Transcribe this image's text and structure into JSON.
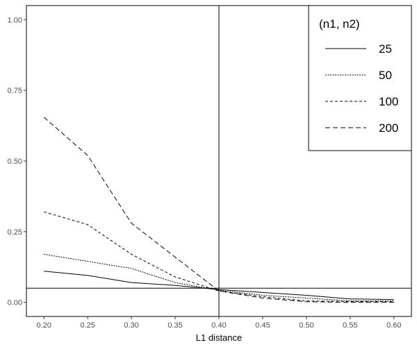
{
  "chart_data": {
    "type": "line",
    "xlabel": "L1 distance",
    "ylabel": "",
    "xlim": [
      0.18,
      0.62
    ],
    "ylim": [
      -0.05,
      1.05
    ],
    "x_ticks": [
      0.2,
      0.25,
      0.3,
      0.35,
      0.4,
      0.45,
      0.5,
      0.55,
      0.6
    ],
    "x_tick_labels": [
      "0.20",
      "0.25",
      "0.30",
      "0.35",
      "0.40",
      "0.45",
      "0.50",
      "0.55",
      "0.60"
    ],
    "y_ticks": [
      0,
      0.25,
      0.5,
      0.75,
      1.0
    ],
    "y_tick_labels": [
      "0.00",
      "0.25",
      "0.50",
      "0.75",
      "1.00"
    ],
    "reference_lines": {
      "vertical_x": 0.4,
      "horizontal_y": 0.05
    },
    "grid": false,
    "legend": {
      "title": "(n1, n2)",
      "position": "top-right"
    },
    "x": [
      0.2,
      0.25,
      0.3,
      0.35,
      0.4,
      0.45,
      0.5,
      0.55,
      0.6
    ],
    "series": [
      {
        "name": "25",
        "dash": "solid",
        "values": [
          0.11,
          0.095,
          0.07,
          0.06,
          0.045,
          0.035,
          0.025,
          0.012,
          0.01
        ]
      },
      {
        "name": "50",
        "dash": "dotted",
        "values": [
          0.17,
          0.145,
          0.12,
          0.07,
          0.043,
          0.025,
          0.015,
          0.005,
          0.005
        ]
      },
      {
        "name": "100",
        "dash": "shortdash",
        "values": [
          0.32,
          0.275,
          0.17,
          0.09,
          0.04,
          0.02,
          0.005,
          0.003,
          0.002
        ]
      },
      {
        "name": "200",
        "dash": "longdash",
        "values": [
          0.655,
          0.52,
          0.28,
          0.16,
          0.04,
          0.015,
          0.002,
          0.0,
          0.0
        ]
      }
    ]
  }
}
